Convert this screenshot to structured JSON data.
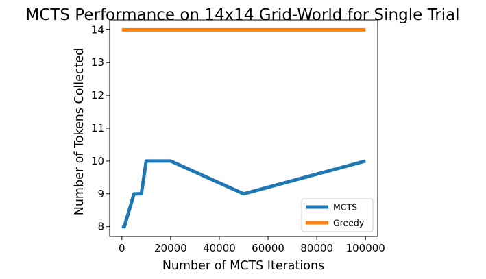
{
  "chart_data": {
    "type": "line",
    "title": "MCTS Performance on 14x14 Grid-World for Single Trial",
    "xlabel": "Number of MCTS Iterations",
    "ylabel": "Number of Tokens Collected",
    "xlim": [
      -5000,
      105000
    ],
    "ylim": [
      7.7,
      14.3
    ],
    "xticks": [
      0,
      20000,
      40000,
      60000,
      80000,
      100000
    ],
    "yticks": [
      8,
      9,
      10,
      11,
      12,
      13,
      14
    ],
    "grid": false,
    "legend": {
      "placement": "lower-right"
    },
    "series": [
      {
        "name": "MCTS",
        "color": "#1f77b4",
        "x": [
          0,
          1000,
          5000,
          8000,
          10000,
          20000,
          50000,
          100000
        ],
        "y": [
          8,
          8,
          9,
          9,
          10,
          10,
          9,
          10
        ]
      },
      {
        "name": "Greedy",
        "color": "#ff7f0e",
        "x": [
          0,
          1000,
          5000,
          8000,
          10000,
          20000,
          50000,
          100000
        ],
        "y": [
          14,
          14,
          14,
          14,
          14,
          14,
          14,
          14
        ]
      }
    ]
  }
}
